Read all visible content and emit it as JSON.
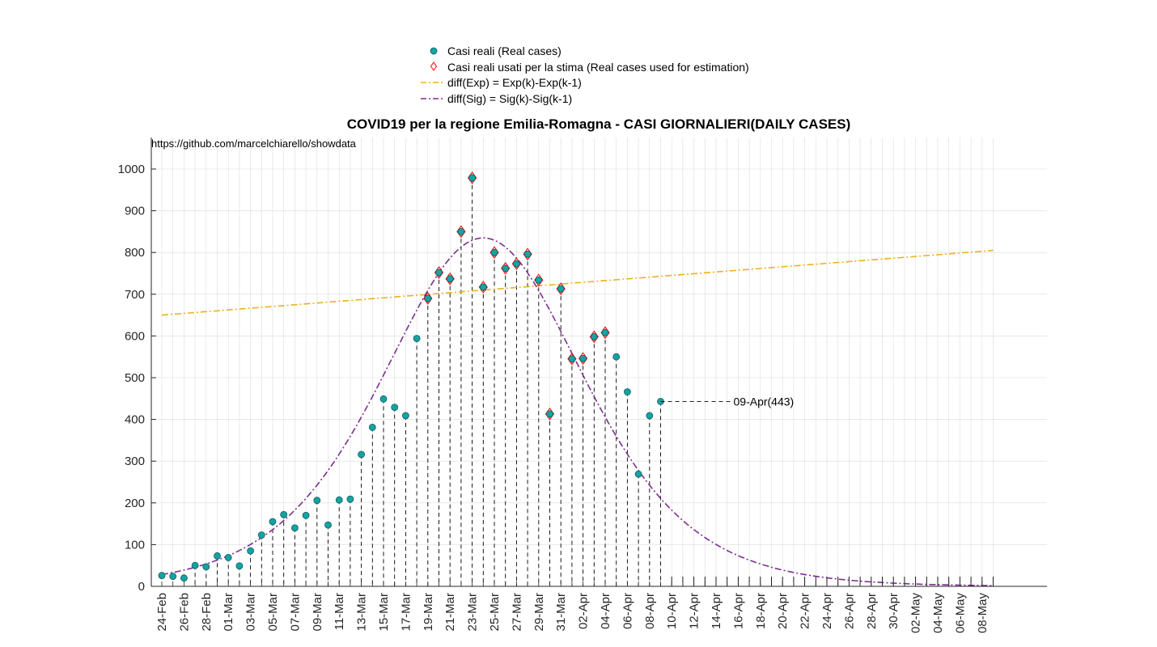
{
  "chart_data": {
    "type": "scatter",
    "title": "COVID19 per la regione Emilia-Romagna - CASI GIORNALIERI(DAILY CASES)",
    "source_note": "https://github.com/marcelchiarello/showdata",
    "ylim": [
      0,
      1080
    ],
    "yticks": [
      0,
      100,
      200,
      300,
      400,
      500,
      600,
      700,
      800,
      900,
      1000
    ],
    "x_start_date": "24-Feb",
    "x_day_count": 76,
    "xtick_labels": [
      "24-Feb",
      "26-Feb",
      "28-Feb",
      "01-Mar",
      "03-Mar",
      "05-Mar",
      "07-Mar",
      "09-Mar",
      "11-Mar",
      "13-Mar",
      "15-Mar",
      "17-Mar",
      "19-Mar",
      "21-Mar",
      "23-Mar",
      "25-Mar",
      "27-Mar",
      "29-Mar",
      "31-Mar",
      "02-Apr",
      "04-Apr",
      "06-Apr",
      "08-Apr",
      "10-Apr",
      "12-Apr",
      "14-Apr",
      "16-Apr",
      "18-Apr",
      "20-Apr",
      "22-Apr",
      "24-Apr",
      "26-Apr",
      "28-Apr",
      "30-Apr",
      "02-May",
      "04-May",
      "06-May",
      "08-May"
    ],
    "grid": true,
    "legend_position": "top-center",
    "legend": [
      {
        "label": "Casi reali (Real cases)",
        "marker": "circle",
        "color": "#17a2a2"
      },
      {
        "label": "Casi reali usati per la stima (Real cases used for estimation)",
        "marker": "diamond",
        "color": "#ff0000"
      },
      {
        "label": "diff(Exp) = Exp(k)-Exp(k-1)",
        "marker": "dashdot",
        "color": "#edb120"
      },
      {
        "label": "diff(Sig) = Sig(k)-Sig(k-1)",
        "marker": "dashdot",
        "color": "#7e2f8e"
      }
    ],
    "series": [
      {
        "name": "Casi reali (Real cases)",
        "dates": [
          "24-Feb",
          "25-Feb",
          "26-Feb",
          "27-Feb",
          "28-Feb",
          "29-Feb",
          "01-Mar",
          "02-Mar",
          "03-Mar",
          "04-Mar",
          "05-Mar",
          "06-Mar",
          "07-Mar",
          "08-Mar",
          "09-Mar",
          "10-Mar",
          "11-Mar",
          "12-Mar",
          "13-Mar",
          "14-Mar",
          "15-Mar",
          "16-Mar",
          "17-Mar",
          "18-Mar",
          "19-Mar",
          "20-Mar",
          "21-Mar",
          "22-Mar",
          "23-Mar",
          "24-Mar",
          "25-Mar",
          "26-Mar",
          "27-Mar",
          "28-Mar",
          "29-Mar",
          "30-Mar",
          "31-Mar",
          "01-Apr",
          "02-Apr",
          "03-Apr",
          "04-Apr",
          "05-Apr",
          "06-Apr",
          "07-Apr",
          "08-Apr",
          "09-Apr"
        ],
        "values": [
          26,
          24,
          20,
          50,
          47,
          73,
          69,
          49,
          85,
          123,
          155,
          172,
          140,
          170,
          206,
          147,
          207,
          209,
          316,
          381,
          449,
          429,
          409,
          594,
          690,
          752,
          737,
          850,
          979,
          717,
          800,
          762,
          773,
          796,
          734,
          413,
          713,
          545,
          546,
          598,
          608,
          550,
          466,
          269,
          409,
          443
        ]
      },
      {
        "name": "Casi reali usati per la stima (Real cases used for estimation)",
        "dates": [
          "19-Mar",
          "20-Mar",
          "21-Mar",
          "22-Mar",
          "23-Mar",
          "24-Mar",
          "25-Mar",
          "26-Mar",
          "27-Mar",
          "28-Mar",
          "29-Mar",
          "30-Mar",
          "31-Mar",
          "01-Apr",
          "02-Apr",
          "03-Apr",
          "04-Apr"
        ],
        "values": [
          690,
          752,
          737,
          850,
          979,
          717,
          800,
          762,
          773,
          796,
          734,
          413,
          713,
          545,
          546,
          598,
          608
        ]
      },
      {
        "name": "diff(Exp) = Exp(k)-Exp(k-1)",
        "start_value": 650,
        "end_value": 805
      },
      {
        "name": "diff(Sig) = Sig(k)-Sig(k-1)",
        "peak_value": 835,
        "peak_date": "24-Mar"
      }
    ],
    "annotations": [
      {
        "text": "09-Apr(443)",
        "date": "09-Apr",
        "value": 443
      }
    ],
    "colors": {
      "real": "#17a2a2",
      "used": "#ff0000",
      "exp": "#edb120",
      "sig": "#7e2f8e",
      "grid": "#dcdcdc",
      "axis": "#262626"
    }
  }
}
